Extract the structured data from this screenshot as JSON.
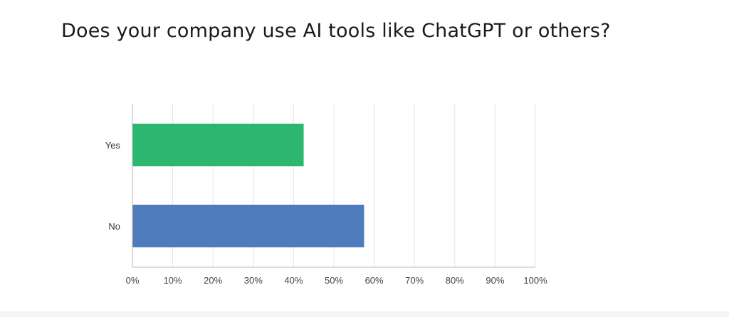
{
  "chart_data": {
    "type": "bar",
    "orientation": "horizontal",
    "title": "Does your company use AI tools like ChatGPT or others?",
    "categories": [
      "Yes",
      "No"
    ],
    "values": [
      42.5,
      57.5
    ],
    "colors": [
      "#2db670",
      "#4f7cbd"
    ],
    "xlim": [
      0,
      100
    ],
    "x_ticks": [
      "0%",
      "10%",
      "20%",
      "30%",
      "40%",
      "50%",
      "60%",
      "70%",
      "80%",
      "90%",
      "100%"
    ],
    "grid": true,
    "legend": "none"
  }
}
